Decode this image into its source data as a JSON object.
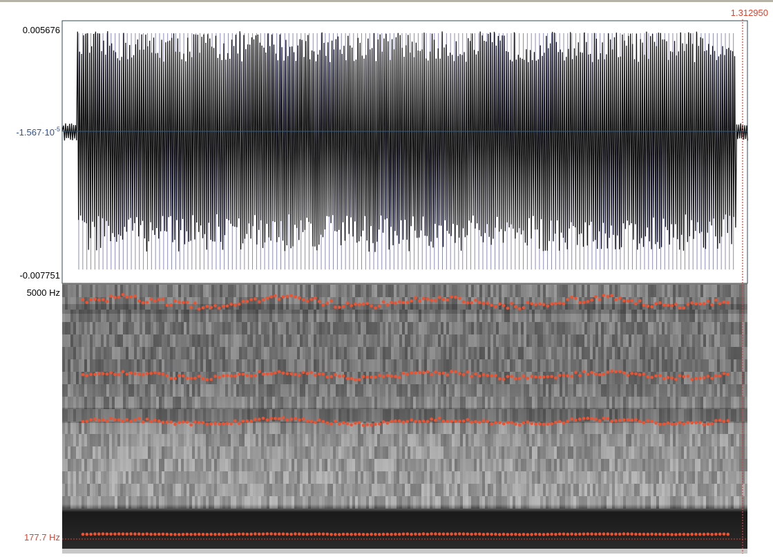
{
  "cursor": {
    "time": "1.312950"
  },
  "waveform": {
    "max_label": "0.005676",
    "mid_label": {
      "base": "-1.567·10",
      "exponent": "-5"
    },
    "min_label": "-0.007751"
  },
  "spectrogram": {
    "top_label": "5000 Hz",
    "bottom_label": "177.7 Hz"
  }
}
